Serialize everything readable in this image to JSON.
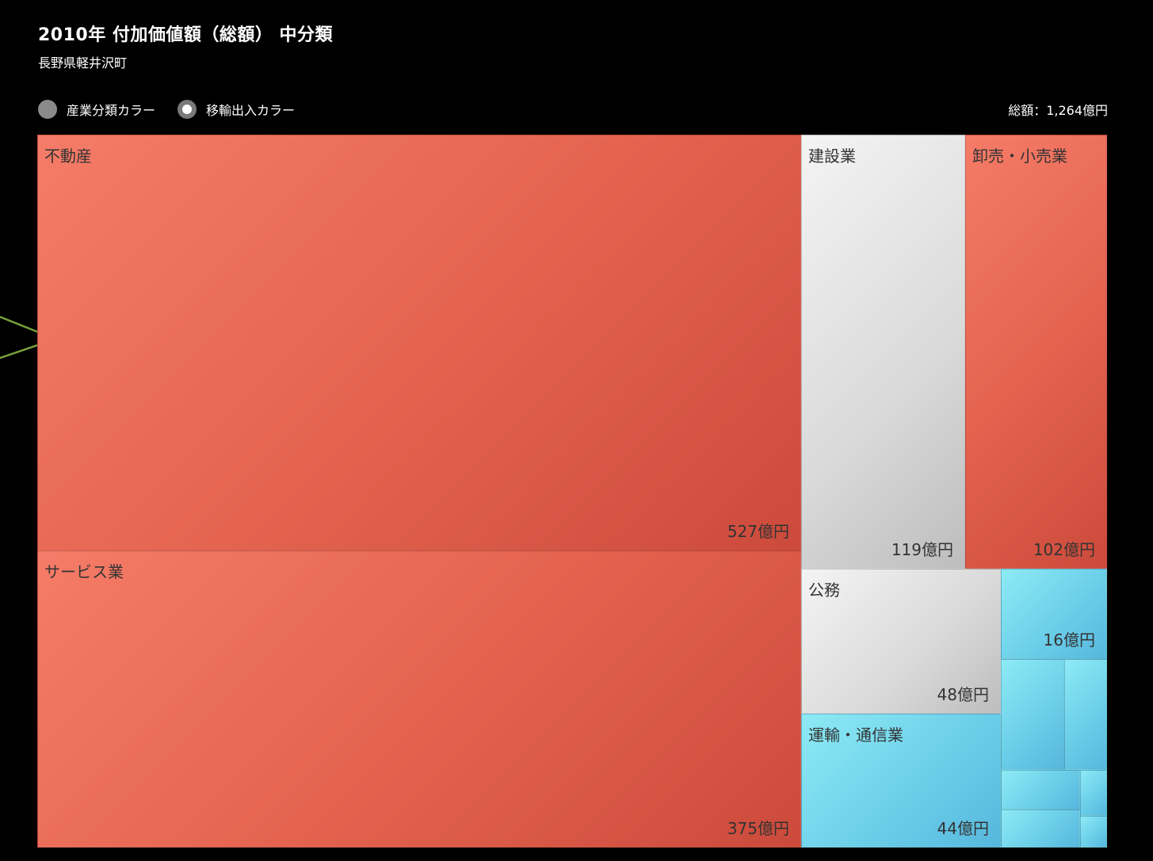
{
  "header": {
    "title": "2010年 付加価値額（総額） 中分類",
    "subtitle": "長野県軽井沢町"
  },
  "legend": {
    "options": [
      {
        "label": "産業分類カラー",
        "selected": false
      },
      {
        "label": "移輸出入カラー",
        "selected": true
      }
    ]
  },
  "total": "総額：1,264億円",
  "chart_data": {
    "type": "treemap",
    "unit": "億円",
    "total": 1264,
    "items": [
      {
        "name": "不動産",
        "value": 527,
        "value_label": "527億円",
        "color_class": "red"
      },
      {
        "name": "サービス業",
        "value": 375,
        "value_label": "375億円",
        "color_class": "red"
      },
      {
        "name": "建設業",
        "value": 119,
        "value_label": "119億円",
        "color_class": "gray"
      },
      {
        "name": "卸売・小売業",
        "value": 102,
        "value_label": "102億円",
        "color_class": "red"
      },
      {
        "name": "公務",
        "value": 48,
        "value_label": "48億円",
        "color_class": "gray"
      },
      {
        "name": "運輸・通信業",
        "value": 44,
        "value_label": "44億円",
        "color_class": "blue"
      },
      {
        "name": "",
        "value": 16,
        "value_label": "16億円",
        "color_class": "blue"
      }
    ],
    "colors": {
      "red": "#e46450",
      "gray": "#d9d9d9",
      "blue": "#6fd2ea"
    }
  }
}
